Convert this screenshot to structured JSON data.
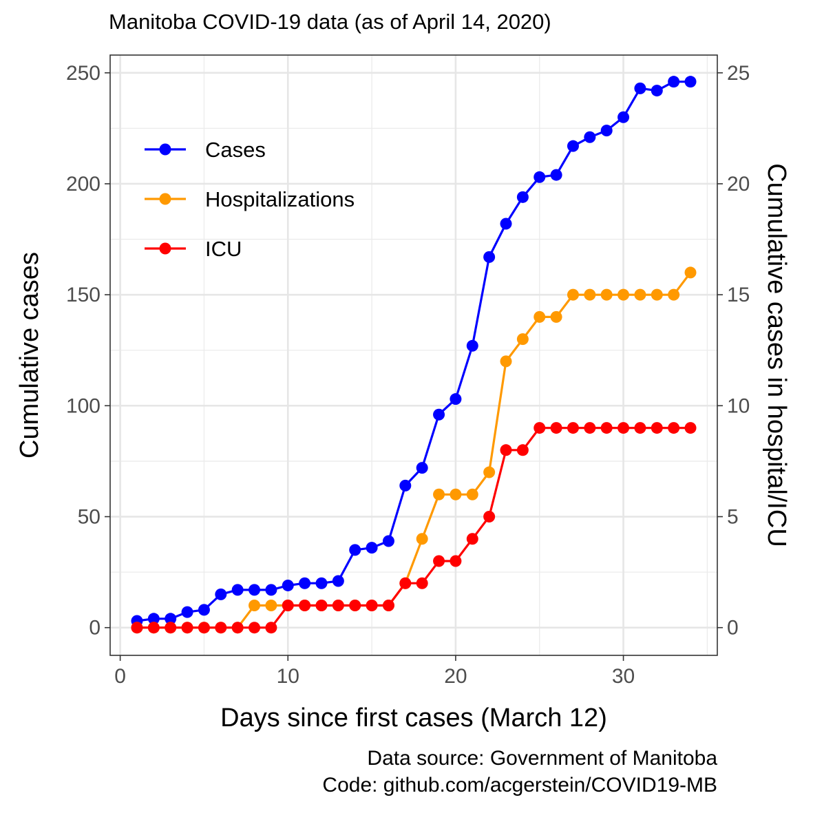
{
  "chart_data": {
    "type": "line",
    "title": "Manitoba COVID-19 data (as of April 14, 2020)",
    "xlabel": "Days since first cases (March 12)",
    "ylabel": "Cumulative cases",
    "y2label": "Cumulative cases in hospital/ICU",
    "xlim": [
      -0.6,
      35.6
    ],
    "ylim": [
      -12.5,
      258
    ],
    "y2lim": [
      -1.25,
      25.8
    ],
    "x_ticks": [
      0,
      10,
      20,
      30
    ],
    "y_ticks": [
      0,
      50,
      100,
      150,
      200,
      250
    ],
    "y2_ticks": [
      0,
      5,
      10,
      15,
      20,
      25
    ],
    "grid": true,
    "legend_position": "top-left",
    "x": [
      1,
      2,
      3,
      4,
      5,
      6,
      7,
      8,
      9,
      10,
      11,
      12,
      13,
      14,
      15,
      16,
      17,
      18,
      19,
      20,
      21,
      22,
      23,
      24,
      25,
      26,
      27,
      28,
      29,
      30,
      31,
      32,
      33,
      34
    ],
    "series": [
      {
        "name": "Cases",
        "axis": "left",
        "color": "#0000ff",
        "values": [
          3,
          4,
          4,
          7,
          8,
          15,
          17,
          17,
          17,
          19,
          20,
          20,
          21,
          35,
          36,
          39,
          64,
          72,
          96,
          103,
          127,
          167,
          182,
          194,
          203,
          204,
          217,
          221,
          224,
          230,
          243,
          242,
          246,
          246
        ]
      },
      {
        "name": "Hospitalizations",
        "axis": "right",
        "color": "#ff9900",
        "values": [
          0,
          0,
          0,
          0,
          0,
          0,
          0,
          1,
          1,
          1,
          1,
          1,
          1,
          1,
          1,
          1,
          2,
          4,
          6,
          6,
          6,
          7,
          12,
          13,
          14,
          14,
          15,
          15,
          15,
          15,
          15,
          15,
          15,
          16
        ]
      },
      {
        "name": "ICU",
        "axis": "right",
        "color": "#ff0000",
        "values": [
          0,
          0,
          0,
          0,
          0,
          0,
          0,
          0,
          0,
          1,
          1,
          1,
          1,
          1,
          1,
          1,
          2,
          2,
          3,
          3,
          4,
          5,
          8,
          8,
          9,
          9,
          9,
          9,
          9,
          9,
          9,
          9,
          9,
          9
        ]
      }
    ],
    "caption_lines": [
      "Data source: Government of Manitoba",
      "Code: github.com/acgerstein/COVID19-MB"
    ]
  }
}
